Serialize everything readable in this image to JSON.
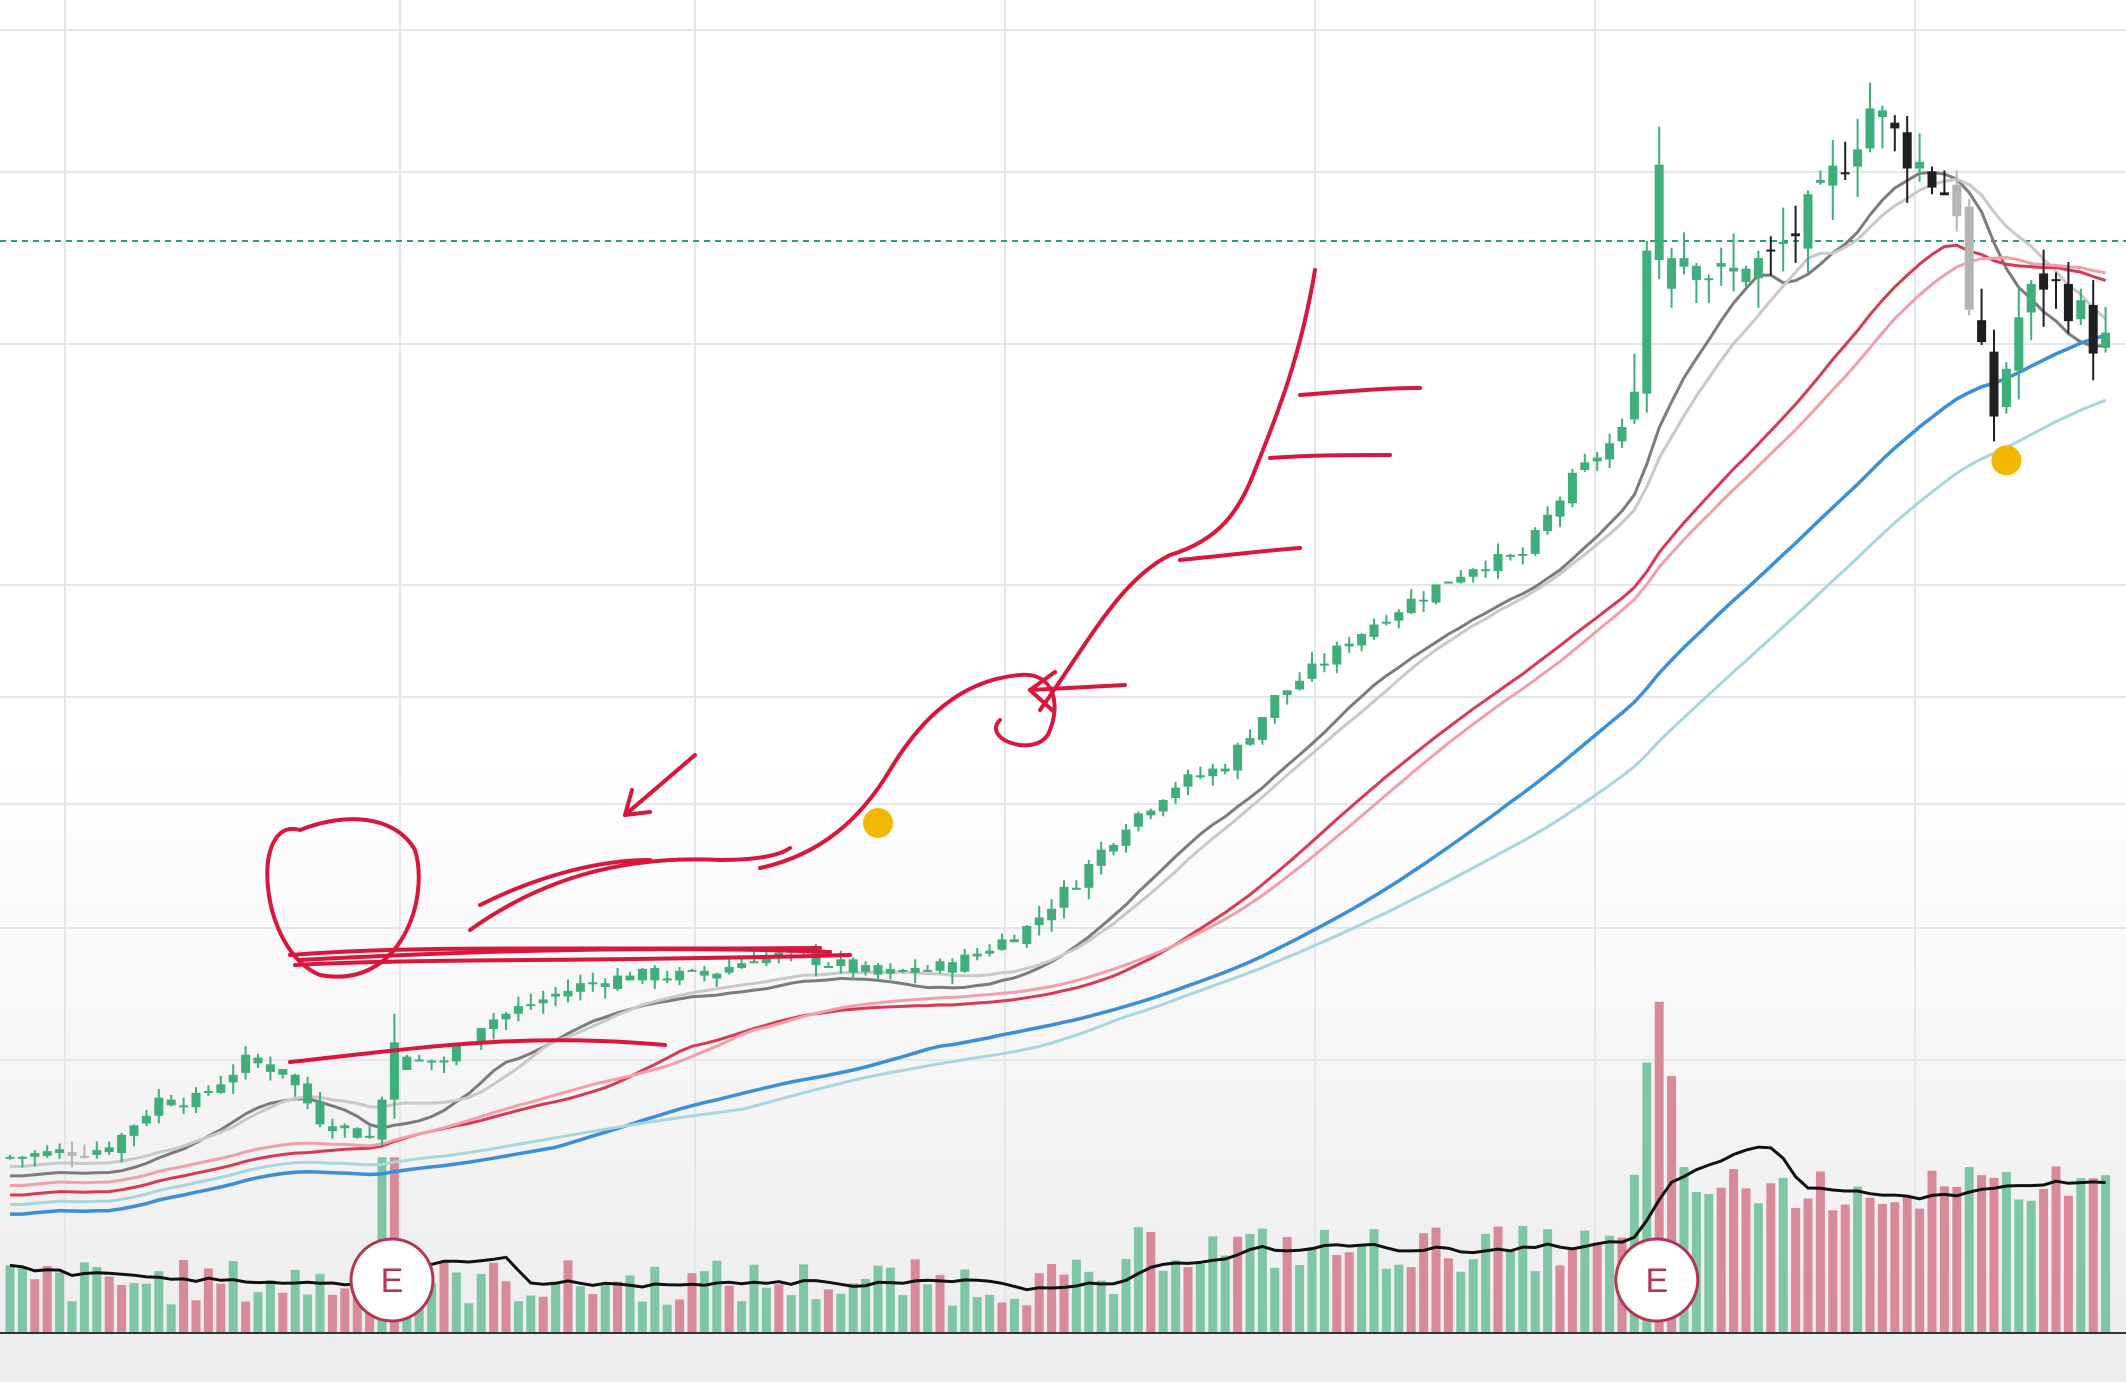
{
  "chart_data": {
    "type": "candlestick",
    "colors": {
      "up": "#3fae7a",
      "down": "#1f1f1f",
      "neutral": "#b5b5b5",
      "volume_up": "#7fc7a4",
      "volume_down": "#d98a98",
      "ma_fast": "#7c7c7c",
      "ma_fast_light": "#c9c9c9",
      "ma_mid": "#d63a55",
      "ma_mid_light": "#f0a0aa",
      "ma_slow": "#3a8fd8",
      "ma_slow_light": "#a8d6de",
      "avg_volume": "#111111",
      "annotation": "#d9163c",
      "marker": "#f2b705",
      "earnings": "#b0384f",
      "resistance": "#2aa06b",
      "grid": "#e3e7ec"
    },
    "price_range": [
      0,
      100
    ],
    "volume_range": [
      0,
      100
    ],
    "grid": true,
    "resistance_level": 100,
    "earnings_markers": [
      {
        "label": "E",
        "index": 30
      },
      {
        "label": "E",
        "index": 132
      }
    ],
    "pullback_markers": [
      {
        "index": 70,
        "price": 39
      },
      {
        "index": 161,
        "price": 77
      }
    ],
    "candles": [],
    "moving_averages": [
      {
        "name": "ma_fast",
        "values": []
      },
      {
        "name": "ma_fast_light",
        "values": []
      },
      {
        "name": "ma_mid",
        "values": []
      },
      {
        "name": "ma_mid_light",
        "values": []
      },
      {
        "name": "ma_slow",
        "values": []
      },
      {
        "name": "ma_slow_light",
        "values": []
      }
    ],
    "volume": [],
    "avg_volume": []
  }
}
